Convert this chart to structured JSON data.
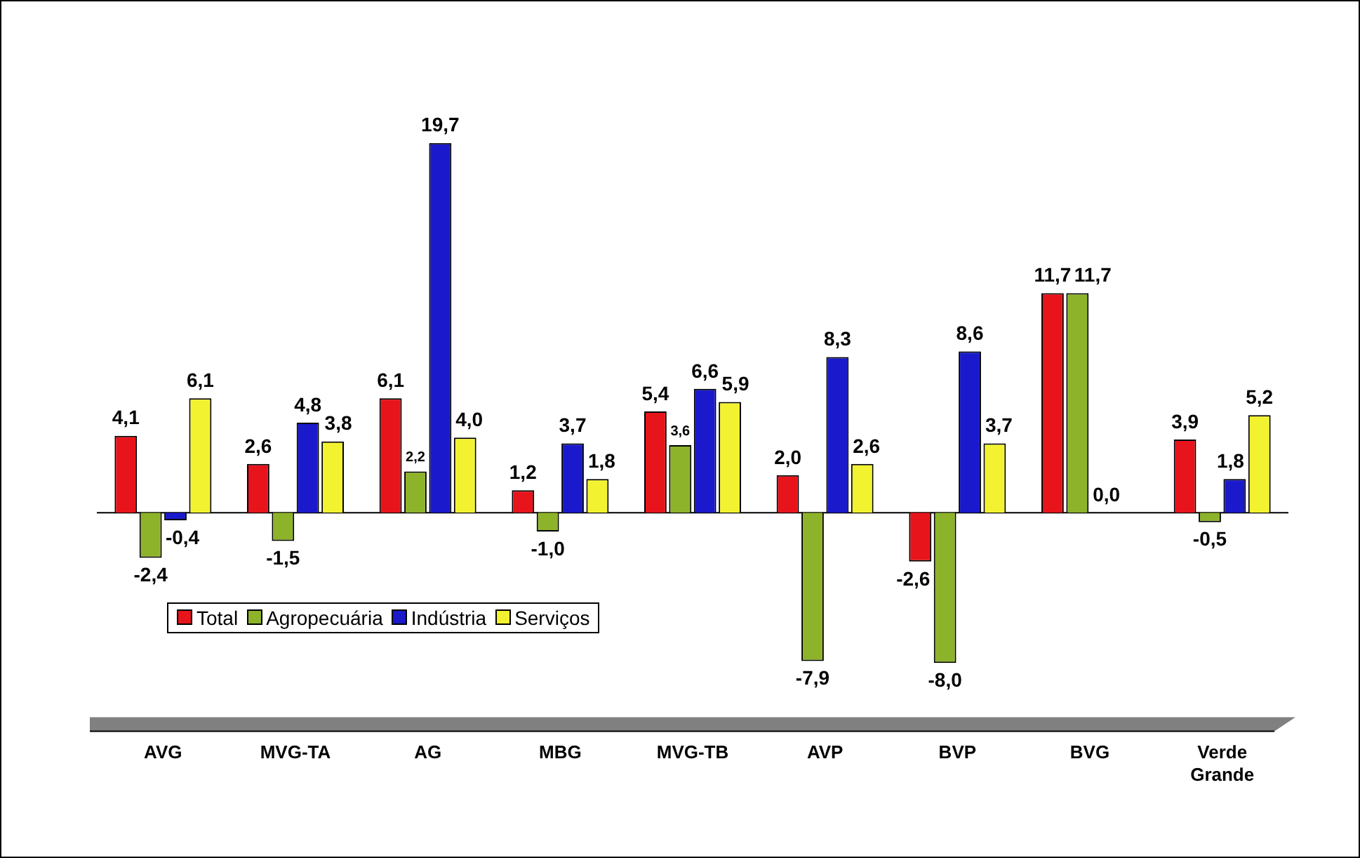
{
  "chart_data": {
    "type": "bar",
    "categories": [
      "AVG",
      "MVG-TA",
      "AG",
      "MBG",
      "MVG-TB",
      "AVP",
      "BVP",
      "BVG",
      "Verde Grande"
    ],
    "series": [
      {
        "name": "Total",
        "color": "#e8141b",
        "values": [
          4.1,
          2.6,
          6.1,
          1.2,
          5.4,
          2.0,
          -2.6,
          11.7,
          3.9
        ],
        "value_labels": [
          "4,1",
          "2,6",
          "6,1",
          "1,2",
          "5,4",
          "2,0",
          "-2,6",
          "11,7",
          "3,9"
        ]
      },
      {
        "name": "Agropecuária",
        "color": "#8db32a",
        "values": [
          -2.4,
          -1.5,
          2.2,
          -1.0,
          3.6,
          -7.9,
          -8.0,
          11.7,
          -0.5
        ],
        "value_labels": [
          "-2,4",
          "-1,5",
          "2,2",
          "-1,0",
          "3,6",
          "-7,9",
          "-8,0",
          "11,7",
          "-0,5"
        ]
      },
      {
        "name": "Indústria",
        "color": "#1a1acc",
        "values": [
          -0.4,
          4.8,
          19.7,
          3.7,
          6.6,
          8.3,
          8.6,
          0.0,
          1.8
        ],
        "value_labels": [
          "-0,4",
          "4,8",
          "19,7",
          "3,7",
          "6,6",
          "8,3",
          "8,6",
          "0,0",
          "1,8"
        ]
      },
      {
        "name": "Serviços",
        "color": "#f2f230",
        "values": [
          6.1,
          3.8,
          4.0,
          1.8,
          5.9,
          2.6,
          3.7,
          null,
          5.2
        ],
        "value_labels": [
          "6,1",
          "3,8",
          "4,0",
          "1,8",
          "5,9",
          "2,6",
          "3,7",
          null,
          "5,2"
        ]
      }
    ],
    "legend": "center left",
    "grid": false
  }
}
